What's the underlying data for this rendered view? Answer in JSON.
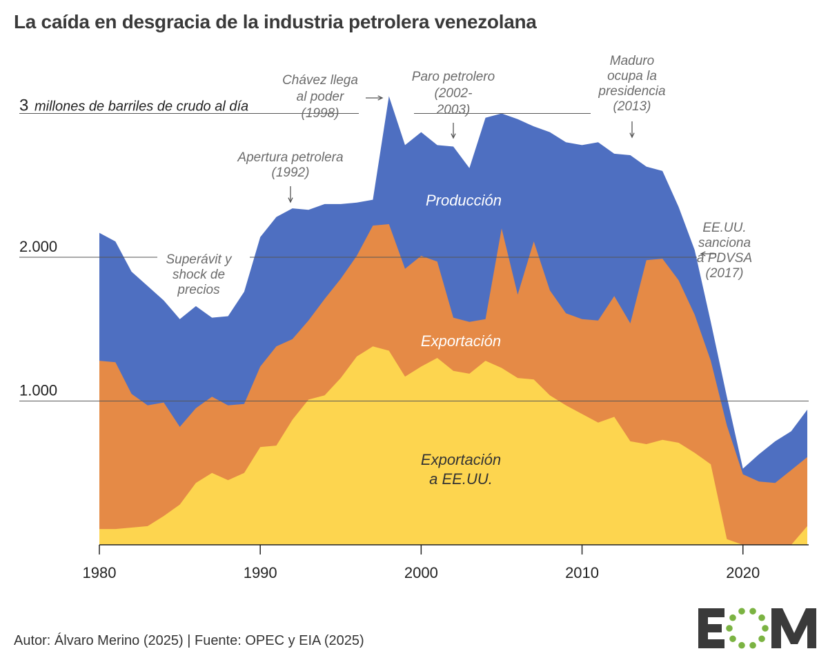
{
  "title": "La caída en desgracia de la industria petrolera venezolana",
  "footer": "Autor: Álvaro Merino (2025) | Fuente: OPEC y EIA (2025)",
  "logo": {
    "text": "EOM",
    "color": "#3a3a3a",
    "dot_color": "#7bb342"
  },
  "colors": {
    "produccion": "#4e6fc1",
    "exportacion": "#e58a46",
    "exportacion_eeuu": "#fdd54f",
    "grid": "#555555",
    "annotation": "#6b6b6b"
  },
  "chart_data": {
    "type": "area",
    "title": "La caída en desgracia de la industria petrolera venezolana",
    "xlim": [
      1980,
      2024
    ],
    "ylim": [
      0,
      3000
    ],
    "x_ticks": [
      "1980",
      "1990",
      "2000",
      "2010",
      "2020"
    ],
    "y_tick_labels": [
      {
        "value": 1000,
        "label": "1.000"
      },
      {
        "value": 2000,
        "label": "2.000"
      },
      {
        "value": 3000,
        "label": "3",
        "suffix": "millones de barriles de crudo al día"
      }
    ],
    "series_labels": {
      "produccion": "Producción",
      "exportacion": "Exportación",
      "exportacion_eeuu": [
        "Exportación",
        "a EE.UU."
      ]
    },
    "x": [
      1980,
      1981,
      1982,
      1983,
      1984,
      1985,
      1986,
      1987,
      1988,
      1989,
      1990,
      1991,
      1992,
      1993,
      1994,
      1995,
      1996,
      1997,
      1998,
      1999,
      2000,
      2001,
      2002,
      2003,
      2004,
      2005,
      2006,
      2007,
      2008,
      2009,
      2010,
      2011,
      2012,
      2013,
      2014,
      2015,
      2016,
      2017,
      2018,
      2019,
      2020,
      2021,
      2022,
      2023,
      2024
    ],
    "series": [
      {
        "key": "produccion",
        "values": [
          2170,
          2110,
          1900,
          1800,
          1700,
          1570,
          1660,
          1580,
          1590,
          1760,
          2140,
          2280,
          2340,
          2330,
          2370,
          2370,
          2380,
          2400,
          3120,
          2780,
          2870,
          2780,
          2770,
          2620,
          2970,
          3000,
          2960,
          2910,
          2870,
          2800,
          2780,
          2800,
          2720,
          2710,
          2630,
          2600,
          2350,
          2050,
          1550,
          1030,
          530,
          630,
          720,
          790,
          940
        ]
      },
      {
        "key": "exportacion",
        "values": [
          1280,
          1270,
          1050,
          970,
          990,
          820,
          950,
          1030,
          970,
          980,
          1240,
          1380,
          1430,
          1560,
          1710,
          1850,
          2010,
          2220,
          2230,
          1920,
          2010,
          1970,
          1580,
          1550,
          1570,
          2200,
          1740,
          2110,
          1770,
          1610,
          1570,
          1560,
          1730,
          1540,
          1980,
          1990,
          1840,
          1600,
          1280,
          830,
          490,
          440,
          430,
          520,
          610
        ]
      },
      {
        "key": "exportacion_eeuu",
        "values": [
          110,
          110,
          120,
          130,
          200,
          280,
          430,
          500,
          450,
          500,
          680,
          690,
          870,
          1010,
          1040,
          1160,
          1310,
          1380,
          1350,
          1170,
          1240,
          1300,
          1210,
          1190,
          1280,
          1230,
          1160,
          1150,
          1040,
          970,
          910,
          850,
          890,
          720,
          700,
          730,
          710,
          640,
          560,
          40,
          0,
          0,
          0,
          0,
          130
        ]
      }
    ],
    "annotations": [
      {
        "lines": [
          "Superávit y",
          "shock de",
          "precios"
        ]
      },
      {
        "lines": [
          "Apertura petrolera",
          "(1992)"
        ]
      },
      {
        "lines": [
          "Chávez llega",
          "al poder",
          "(1998)"
        ]
      },
      {
        "lines": [
          "Paro petrolero",
          "(2002-",
          "2003)"
        ]
      },
      {
        "lines": [
          "Maduro",
          "ocupa la",
          "presidencia",
          "(2013)"
        ]
      },
      {
        "lines": [
          "EE.UU.",
          "sanciona",
          "a PDVSA",
          "(2017)"
        ]
      }
    ]
  }
}
